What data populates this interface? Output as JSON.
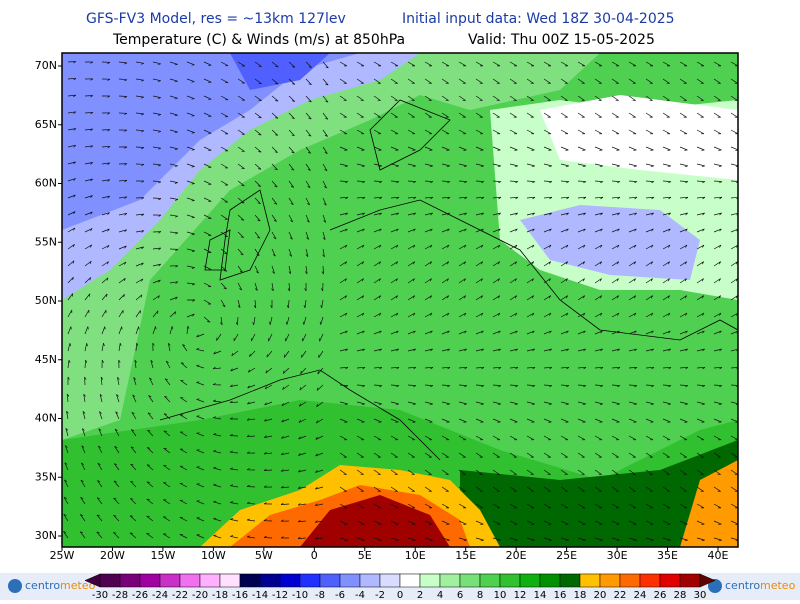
{
  "header": {
    "model": "GFS-FV3 Model, res = ~13km 127lev",
    "init": "Initial input data: Wed 18Z 30-04-2025",
    "field": "Temperature (C) & Winds (m/s) at 850hPa",
    "valid": "Valid: Thu 00Z 15-05-2025"
  },
  "lat_labels": [
    "70N",
    "65N",
    "60N",
    "55N",
    "50N",
    "45N",
    "40N",
    "35N",
    "30N"
  ],
  "lon_labels": [
    "25W",
    "20W",
    "15W",
    "10W",
    "5W",
    "0",
    "5E",
    "10E",
    "15E",
    "20E",
    "25E",
    "30E",
    "35E",
    "40E"
  ],
  "colorbar": {
    "ticks": [
      -30,
      -28,
      -26,
      -24,
      -22,
      -20,
      -18,
      -16,
      -14,
      -12,
      -10,
      -8,
      -6,
      -4,
      -2,
      0,
      2,
      4,
      6,
      8,
      10,
      12,
      14,
      16,
      18,
      20,
      22,
      24,
      26,
      28,
      30
    ],
    "colors": [
      "#500050",
      "#780078",
      "#a000a0",
      "#c830c8",
      "#f070f0",
      "#ffb0ff",
      "#ffe0ff",
      "#000050",
      "#000090",
      "#0000d0",
      "#2030ff",
      "#5060ff",
      "#8090ff",
      "#b0b8ff",
      "#d8dcff",
      "#ffffff",
      "#c8ffc8",
      "#a0f0a0",
      "#78e078",
      "#50d050",
      "#30c030",
      "#10b010",
      "#009000",
      "#006800",
      "#ffc000",
      "#ff9a00",
      "#ff6a00",
      "#ff3000",
      "#e00000",
      "#a00000"
    ],
    "low_color": "#400040",
    "high_color": "#600000"
  },
  "logo": {
    "left": [
      "centro",
      "meteo"
    ],
    "right": [
      "centro",
      "meteo"
    ]
  }
}
